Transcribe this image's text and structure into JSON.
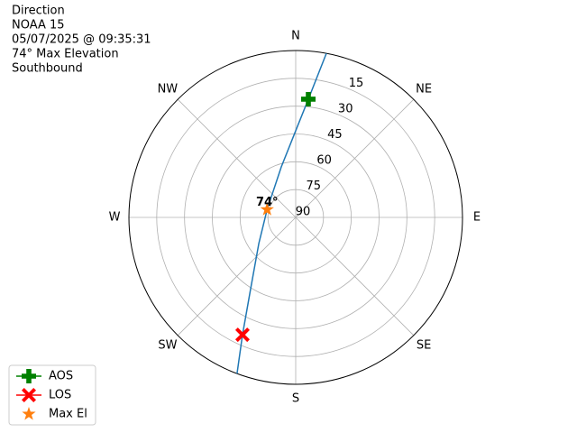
{
  "chart_data": {
    "type": "polar",
    "title_lines": [
      "Direction",
      "NOAA 15",
      "05/07/2025 @ 09:35:31",
      "74° Max Elevation",
      "Southbound"
    ],
    "rlim": [
      90,
      0
    ],
    "rticks": [
      15,
      30,
      45,
      60,
      75,
      90
    ],
    "thetaticks": [
      {
        "value": 0,
        "label": "N"
      },
      {
        "value": 45,
        "label": "NE"
      },
      {
        "value": 90,
        "label": "E"
      },
      {
        "value": 135,
        "label": "SE"
      },
      {
        "value": 180,
        "label": "S"
      },
      {
        "value": 225,
        "label": "SW"
      },
      {
        "value": 270,
        "label": "W"
      },
      {
        "value": 315,
        "label": "NW"
      }
    ],
    "grid": true,
    "track": {
      "color": "#1f77b4",
      "azimuth": [
        10.6,
        6.1,
        1.1,
        344,
        285.3,
        234.7,
        212.3,
        204.4,
        200.6
      ],
      "elevation": [
        0,
        25.9,
        40.9,
        61.7,
        74,
        65.6,
        44.5,
        20.5,
        0
      ]
    },
    "points": [
      {
        "name": "AOS",
        "color": "#008000",
        "marker": "plus",
        "azimuth": 6.1,
        "elevation": 25.9
      },
      {
        "name": "LOS",
        "color": "#ff0000",
        "marker": "x",
        "azimuth": 204.4,
        "elevation": 20.5
      },
      {
        "name": "Max El",
        "color": "#ff7f0e",
        "marker": "star",
        "azimuth": 285.3,
        "elevation": 74
      }
    ],
    "annotation": "74°",
    "legend": "lower left"
  }
}
